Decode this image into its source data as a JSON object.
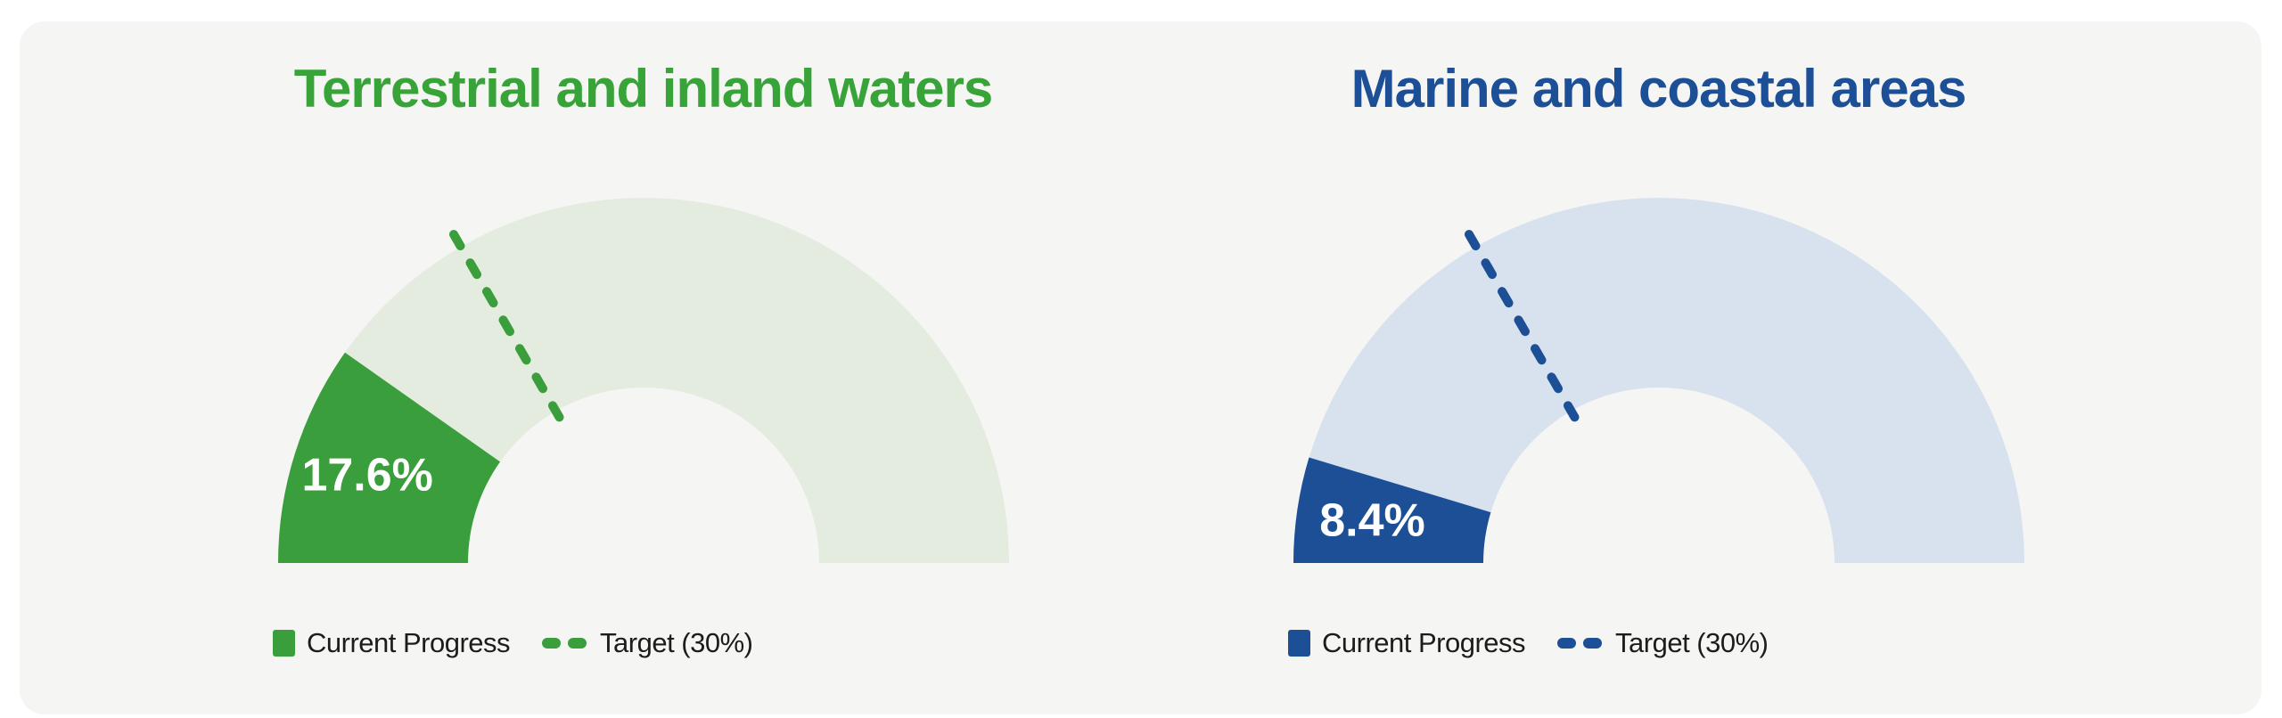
{
  "page": {
    "background": "#ffffff",
    "card_background": "#f5f5f3"
  },
  "charts": [
    {
      "title": "Terrestrial and inland waters",
      "title_color": "#38a339",
      "value": 17.6,
      "value_label": "17.6%",
      "target": 30,
      "axis_max": 90,
      "fill_color": "#3a9e3c",
      "track_color": "#e4ebdf",
      "value_text_color": "#ffffff",
      "legend": {
        "current": "Current Progress",
        "target": "Target (30%)"
      }
    },
    {
      "title": "Marine and coastal areas",
      "title_color": "#1d4f96",
      "value": 8.4,
      "value_label": "8.4%",
      "target": 30,
      "axis_max": 90,
      "fill_color": "#1d4f96",
      "track_color": "#d8e2ef",
      "value_text_color": "#ffffff",
      "legend": {
        "current": "Current Progress",
        "target": "Target (30%)"
      }
    }
  ],
  "chart_data": [
    {
      "type": "gauge",
      "title": "Terrestrial and inland waters",
      "value": 17.6,
      "unit": "%",
      "value_label": "17.6%",
      "target": 30,
      "target_label": "Target (30%)",
      "axis_range": [
        0,
        90
      ],
      "arc_span_degrees": 180,
      "legend": [
        "Current Progress",
        "Target (30%)"
      ],
      "legend_position": "bottom",
      "color": "#3a9e3c",
      "track_color": "#e4ebdf"
    },
    {
      "type": "gauge",
      "title": "Marine and coastal areas",
      "value": 8.4,
      "unit": "%",
      "value_label": "8.4%",
      "target": 30,
      "target_label": "Target (30%)",
      "axis_range": [
        0,
        90
      ],
      "arc_span_degrees": 180,
      "legend": [
        "Current Progress",
        "Target (30%)"
      ],
      "legend_position": "bottom",
      "color": "#1d4f96",
      "track_color": "#d8e2ef"
    }
  ]
}
